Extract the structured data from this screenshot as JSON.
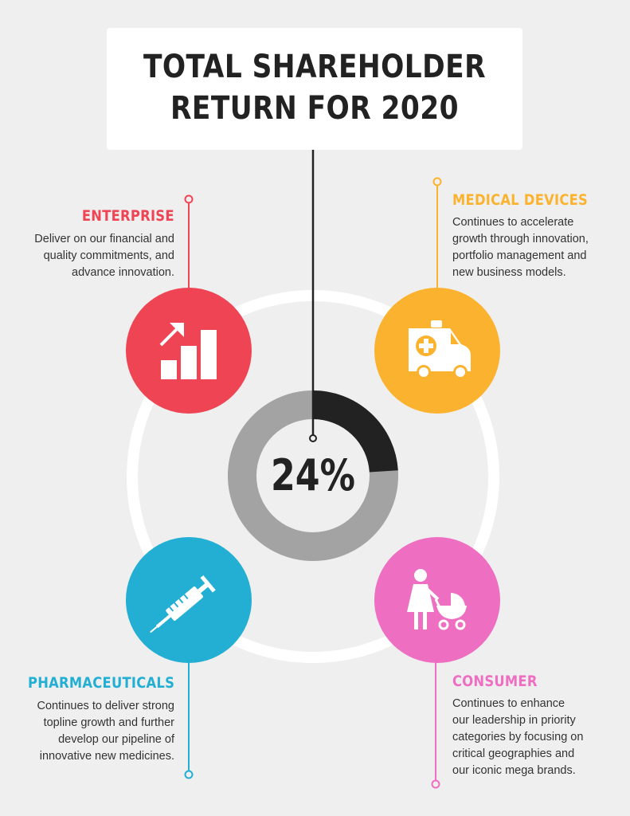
{
  "title": {
    "line1": "TOTAL SHAREHOLDER",
    "line2": "RETURN FOR 2020"
  },
  "center": {
    "value_label": "24%",
    "value_percent": 24
  },
  "colors": {
    "background": "#f0efef",
    "enterprise": "#ee4454",
    "medical_devices": "#fbb32f",
    "pharmaceuticals": "#23afd4",
    "consumer": "#ee6ec1",
    "donut_fill": "#222222",
    "donut_track": "#a3a3a3",
    "ring": "#ffffff"
  },
  "segments": {
    "enterprise": {
      "heading": "ENTERPRISE",
      "icon": "growth-chart-icon",
      "lines": [
        "Deliver on our financial and",
        "quality commitments, and",
        "advance innovation."
      ]
    },
    "medical_devices": {
      "heading": "MEDICAL DEVICES",
      "icon": "ambulance-icon",
      "lines": [
        "Continues to accelerate",
        "growth through innovation,",
        "portfolio management and",
        "new business models."
      ]
    },
    "pharmaceuticals": {
      "heading": "PHARMACEUTICALS",
      "icon": "syringe-icon",
      "lines": [
        "Continues to deliver strong",
        "topline growth and further",
        "develop our pipeline of",
        "innovative new medicines."
      ]
    },
    "consumer": {
      "heading": "CONSUMER",
      "icon": "mother-stroller-icon",
      "lines": [
        "Continues to enhance",
        "our leadership in priority",
        "categories by focusing on",
        "critical geographies and",
        "our iconic mega brands."
      ]
    }
  }
}
